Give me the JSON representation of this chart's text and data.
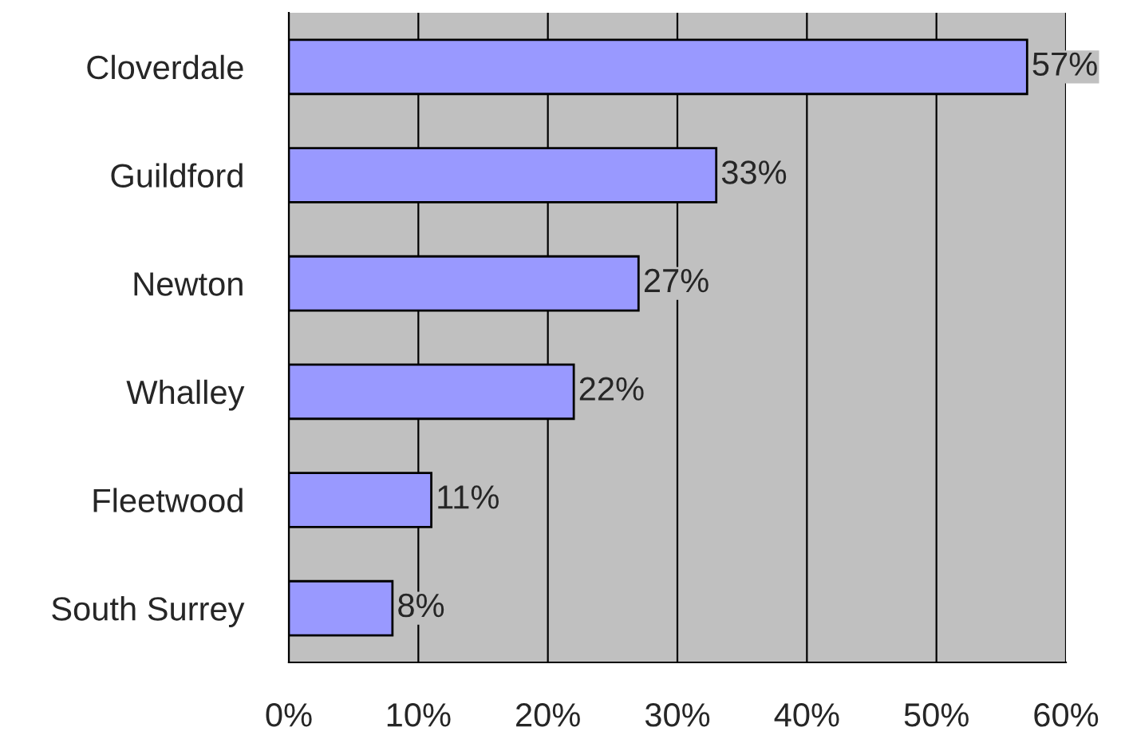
{
  "chart_data": {
    "type": "bar",
    "orientation": "horizontal",
    "categories": [
      "Cloverdale",
      "Guildford",
      "Newton",
      "Whalley",
      "Fleetwood",
      "South Surrey"
    ],
    "values": [
      57,
      33,
      27,
      22,
      11,
      8
    ],
    "value_labels": [
      "57%",
      "33%",
      "27%",
      "22%",
      "11%",
      "8%"
    ],
    "color": "#9999ff",
    "xlim": [
      0,
      60
    ],
    "xticks": [
      {
        "value": 0,
        "label": "0%"
      },
      {
        "value": 10,
        "label": "10%"
      },
      {
        "value": 20,
        "label": "20%"
      },
      {
        "value": 30,
        "label": "30%"
      },
      {
        "value": 40,
        "label": "40%"
      },
      {
        "value": 50,
        "label": "50%"
      },
      {
        "value": 60,
        "label": "60%"
      }
    ],
    "grid": "x",
    "legend": false
  }
}
